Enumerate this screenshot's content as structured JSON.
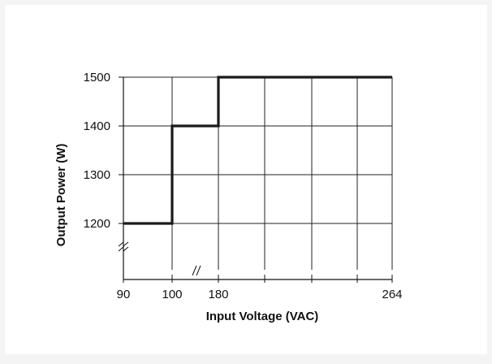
{
  "chart_data": {
    "type": "line",
    "title": "",
    "xlabel": "Input Voltage (VAC)",
    "ylabel": "Output Power (W)",
    "x_ticks": [
      "90",
      "100",
      "180",
      "264"
    ],
    "y_ticks": [
      "1200",
      "1300",
      "1400",
      "1500"
    ],
    "x_scale": "broken (90-100 and 100-180 axis breaks)",
    "grid": true,
    "series": [
      {
        "step": "step-up",
        "x": [
          90,
          100,
          100,
          180,
          180,
          264
        ],
        "y": [
          1200,
          1200,
          1400,
          1400,
          1500,
          1500
        ]
      }
    ],
    "color": "#1a1a1a"
  }
}
